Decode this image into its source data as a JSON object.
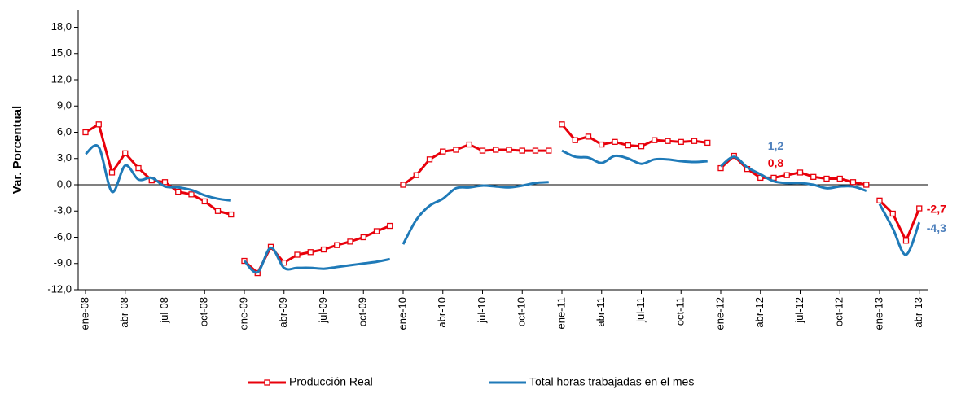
{
  "chart_data": {
    "type": "line",
    "y_label": "Var. Porcentual",
    "categories": [
      "ene-08",
      null,
      null,
      "abr-08",
      null,
      null,
      "jul-08",
      null,
      null,
      "oct-08",
      null,
      null,
      "ene-09",
      null,
      null,
      "abr-09",
      null,
      null,
      "jul-09",
      null,
      null,
      "oct-09",
      null,
      null,
      "ene-10",
      null,
      null,
      "abr-10",
      null,
      null,
      "jul-10",
      null,
      null,
      "oct-10",
      null,
      null,
      "ene-11",
      null,
      null,
      "abr-11",
      null,
      null,
      "jul-11",
      null,
      null,
      "oct-11",
      null,
      null,
      "ene-12",
      null,
      null,
      "abr-12",
      null,
      null,
      "jul-12",
      null,
      null,
      "oct-12",
      null,
      null,
      "ene-13",
      null,
      null,
      "abr-13"
    ],
    "series": [
      {
        "name": "Producción Real",
        "color": "#e8000b",
        "markers": true,
        "smooth": false,
        "values": [
          6.0,
          6.9,
          1.4,
          3.6,
          1.9,
          0.5,
          0.3,
          -0.8,
          -1.1,
          -1.9,
          -3.0,
          -3.4,
          -8.7,
          -10.1,
          -7.1,
          -8.9,
          -8.0,
          -7.7,
          -7.4,
          -6.9,
          -6.5,
          -6.0,
          -5.3,
          -4.7,
          0.0,
          1.1,
          2.9,
          3.8,
          4.0,
          4.6,
          3.9,
          4.0,
          4.0,
          3.9,
          3.9,
          3.9,
          6.9,
          5.1,
          5.5,
          4.6,
          4.9,
          4.5,
          4.4,
          5.1,
          5.0,
          4.9,
          5.0,
          4.8,
          1.9,
          3.3,
          1.8,
          0.8,
          0.8,
          1.1,
          1.4,
          0.9,
          0.7,
          0.7,
          0.3,
          0.0,
          -1.8,
          -3.3,
          -6.4,
          -2.7
        ],
        "value_labels": [
          null,
          null,
          null,
          null,
          null,
          null,
          null,
          null,
          null,
          null,
          null,
          null,
          null,
          null,
          null,
          null,
          null,
          null,
          null,
          null,
          null,
          null,
          null,
          null,
          null,
          null,
          null,
          null,
          null,
          null,
          null,
          null,
          null,
          null,
          null,
          null,
          null,
          null,
          null,
          null,
          null,
          null,
          null,
          null,
          null,
          null,
          null,
          null,
          null,
          null,
          null,
          "0,8",
          null,
          null,
          null,
          null,
          null,
          null,
          null,
          null,
          null,
          null,
          null,
          "-2,7"
        ]
      },
      {
        "name": "Total horas trabajadas en el mes",
        "color": "#1f7ab8",
        "label_color": "#4f81bd",
        "markers": false,
        "smooth": true,
        "values": [
          3.5,
          4.3,
          -0.8,
          2.2,
          0.6,
          0.8,
          -0.2,
          -0.3,
          -0.6,
          -1.2,
          -1.6,
          -1.8,
          -8.7,
          -10.0,
          -7.2,
          -9.5,
          -9.5,
          -9.5,
          -9.6,
          -9.4,
          -9.2,
          -9.0,
          -8.8,
          -8.5,
          -6.8,
          -4.0,
          -2.4,
          -1.6,
          -0.4,
          -0.3,
          -0.1,
          -0.2,
          -0.3,
          -0.1,
          0.2,
          0.3,
          3.9,
          3.2,
          3.1,
          2.5,
          3.3,
          3.0,
          2.4,
          2.9,
          2.9,
          2.7,
          2.6,
          2.7,
          2.1,
          3.2,
          2.0,
          1.2,
          0.4,
          0.2,
          0.2,
          0.0,
          -0.4,
          -0.2,
          -0.2,
          -0.7,
          -2.2,
          -5.0,
          -8.0,
          -4.3
        ],
        "value_labels": [
          null,
          null,
          null,
          null,
          null,
          null,
          null,
          null,
          null,
          null,
          null,
          null,
          null,
          null,
          null,
          null,
          null,
          null,
          null,
          null,
          null,
          null,
          null,
          null,
          null,
          null,
          null,
          null,
          null,
          null,
          null,
          null,
          null,
          null,
          null,
          null,
          null,
          null,
          null,
          null,
          null,
          null,
          null,
          null,
          null,
          null,
          null,
          null,
          null,
          null,
          null,
          "1,2",
          null,
          null,
          null,
          null,
          null,
          null,
          null,
          null,
          null,
          null,
          null,
          "-4,3"
        ]
      }
    ],
    "ylim": [
      -12,
      20
    ],
    "yticks": [
      {
        "value": -12,
        "label": "-12,0"
      },
      {
        "value": -9,
        "label": "-9,0"
      },
      {
        "value": -6,
        "label": "-6,0"
      },
      {
        "value": -3,
        "label": "-3,0"
      },
      {
        "value": 0,
        "label": "0,0"
      },
      {
        "value": 3,
        "label": "3,0"
      },
      {
        "value": 6,
        "label": "6,0"
      },
      {
        "value": 9,
        "label": "9,0"
      },
      {
        "value": 12,
        "label": "12,0"
      },
      {
        "value": 15,
        "label": "15,0"
      },
      {
        "value": 18,
        "label": "18,0"
      }
    ],
    "legend": "bottom"
  }
}
